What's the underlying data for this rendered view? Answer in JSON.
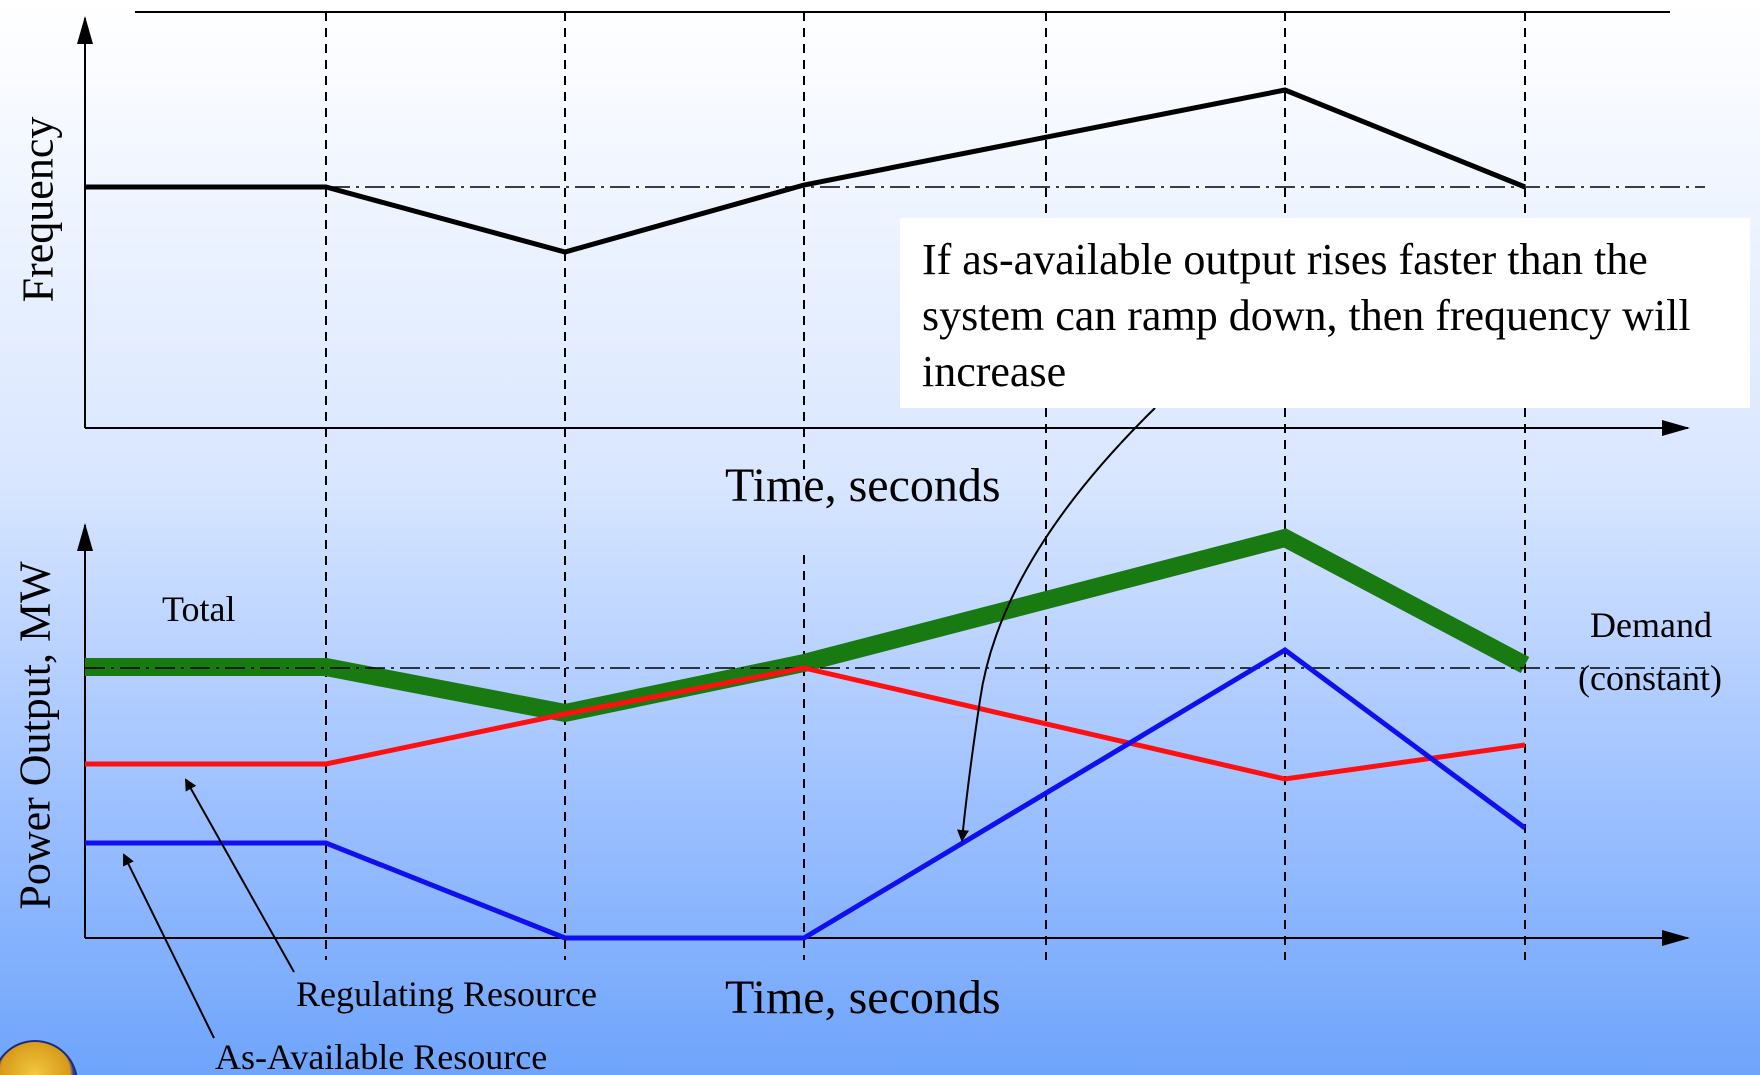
{
  "top_chart": {
    "ylabel": "Frequency",
    "xlabel": "Time, seconds"
  },
  "bottom_chart": {
    "ylabel": "Power Output, MW",
    "xlabel": "Time, seconds"
  },
  "labels": {
    "total": "Total",
    "demand_line1": "Demand",
    "demand_line2": "(constant)",
    "regulating": "Regulating Resource",
    "as_available": "As-Available Resource"
  },
  "callout": {
    "text": "If as-available output rises faster than the system can ramp down, then frequency will increase"
  },
  "colors": {
    "total": "#1a7a12",
    "regulating": "#ff1010",
    "as_available": "#1010ee",
    "frequency": "#000000",
    "background_bottom": "#6ea4fb"
  },
  "logo": {
    "icon": "organization-seal-icon"
  }
}
